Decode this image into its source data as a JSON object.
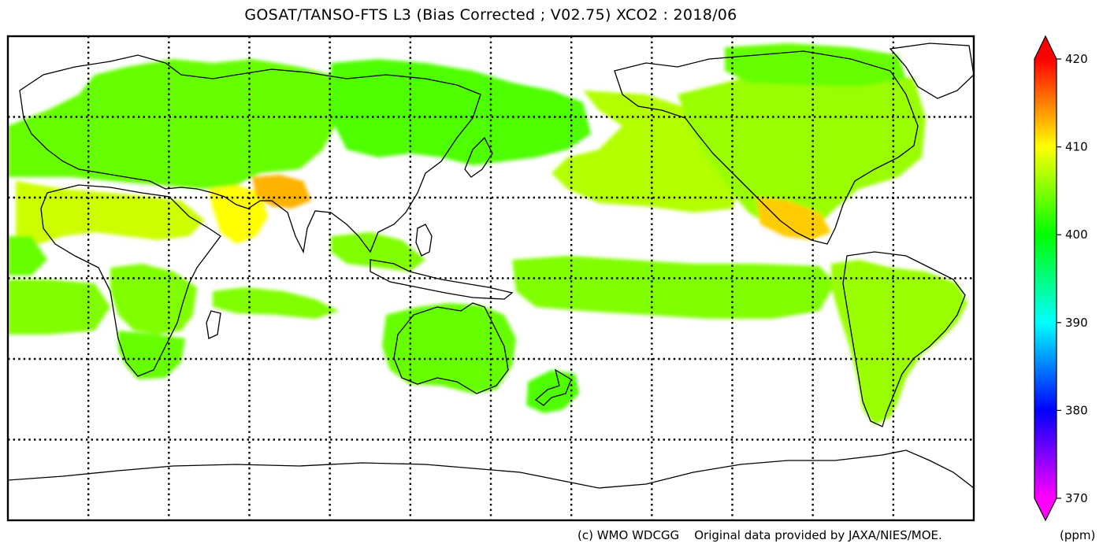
{
  "map": {
    "title": "GOSAT/TANSO-FTS L3 (Bias Corrected ; V02.75) XCO2 : 2018/06",
    "projection": "equirectangular, Pacific-centered (central longitude 150E)",
    "gridlines": {
      "style": "dotted",
      "longitude_step_deg": 30,
      "latitude_step_deg": 30
    },
    "no_data_color": "#ffffff",
    "coastline_color": "#000000"
  },
  "colorbar": {
    "min": 370,
    "max": 420,
    "extend": "both",
    "ticks": [
      "420",
      "410",
      "400",
      "390",
      "380",
      "370"
    ],
    "colormap": [
      "#ff00ff",
      "#0000ff",
      "#00ffff",
      "#00ff00",
      "#ffff00",
      "#ff0000"
    ],
    "unit": "(ppm)"
  },
  "credit": {
    "copyright": "(c) WMO WDCGG",
    "source": "Original data provided by JAXA/NIES/MOE."
  },
  "regions": [
    {
      "name": "europe-russia",
      "xco2_ppm": 404
    },
    {
      "name": "siberia",
      "xco2_ppm": 403
    },
    {
      "name": "north-america",
      "xco2_ppm": 406
    },
    {
      "name": "mexico",
      "xco2_ppm": 412
    },
    {
      "name": "pakistan-northern-india",
      "xco2_ppm": 413
    },
    {
      "name": "arabian-peninsula",
      "xco2_ppm": 410
    },
    {
      "name": "sahara",
      "xco2_ppm": 408
    },
    {
      "name": "central-africa",
      "xco2_ppm": 405
    },
    {
      "name": "southern-africa",
      "xco2_ppm": 404
    },
    {
      "name": "australia",
      "xco2_ppm": 404
    },
    {
      "name": "new-zealand",
      "xco2_ppm": 403
    },
    {
      "name": "south-america",
      "xco2_ppm": 406
    },
    {
      "name": "north-pacific",
      "xco2_ppm": 407
    },
    {
      "name": "tropical-oceans",
      "xco2_ppm": 405
    },
    {
      "name": "southern-oceans",
      "xco2_ppm": 404
    }
  ]
}
